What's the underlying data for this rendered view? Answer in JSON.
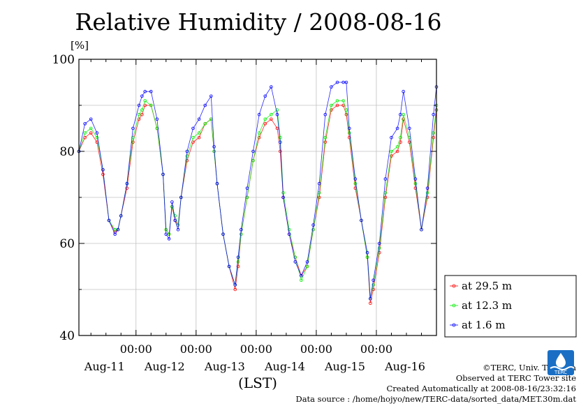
{
  "chart_data": {
    "type": "line",
    "title": "Relative Humidity / 2008-08-16",
    "ylabel": "[%]",
    "xlabel": "(LST)",
    "ylim": [
      40,
      100
    ],
    "yticks": [
      40,
      60,
      80,
      100
    ],
    "x_unit": "days since Aug-11 00:00 LST",
    "xlim": [
      -0.95,
      5.0
    ],
    "xticks": [
      {
        "x": 0,
        "label": "00:00",
        "date": "Aug-11"
      },
      {
        "x": 1,
        "label": "00:00",
        "date": "Aug-12"
      },
      {
        "x": 2,
        "label": "00:00",
        "date": "Aug-13"
      },
      {
        "x": 3,
        "label": "00:00",
        "date": "Aug-14"
      },
      {
        "x": 4,
        "label": "00:00",
        "date": "Aug-15"
      },
      {
        "x": 5,
        "label": "",
        "date": "Aug-16"
      }
    ],
    "grid": true,
    "legend_position": "right-bottom",
    "series": [
      {
        "name": "at 29.5 m",
        "color": "#ff0000",
        "x": [
          -0.95,
          -0.85,
          -0.75,
          -0.65,
          -0.55,
          -0.45,
          -0.35,
          -0.3,
          -0.25,
          -0.15,
          -0.05,
          0.05,
          0.1,
          0.15,
          0.25,
          0.35,
          0.45,
          0.5,
          0.55,
          0.6,
          0.65,
          0.7,
          0.75,
          0.85,
          0.95,
          1.05,
          1.15,
          1.25,
          1.3,
          1.35,
          1.45,
          1.55,
          1.65,
          1.7,
          1.75,
          1.85,
          1.95,
          2.05,
          2.15,
          2.25,
          2.35,
          2.4,
          2.45,
          2.55,
          2.65,
          2.75,
          2.85,
          2.95,
          3.05,
          3.15,
          3.25,
          3.35,
          3.45,
          3.5,
          3.55,
          3.65,
          3.75,
          3.85,
          3.9,
          3.95,
          4.05,
          4.15,
          4.25,
          4.35,
          4.4,
          4.45,
          4.55,
          4.65,
          4.75,
          4.85,
          4.95,
          5.0
        ],
        "y": [
          80,
          83,
          84,
          82,
          75,
          65,
          62.5,
          63,
          66,
          72,
          82,
          87,
          88,
          90,
          90,
          85,
          75,
          63,
          62,
          68,
          65,
          64,
          70,
          78,
          82,
          83,
          86,
          87,
          80,
          73,
          62,
          55,
          50,
          55,
          62,
          70,
          78,
          83,
          86,
          87,
          85,
          80,
          70,
          62,
          57,
          53,
          55,
          63,
          70,
          82,
          89,
          90,
          90,
          88,
          83,
          72,
          65,
          57,
          47,
          50,
          58,
          70,
          79,
          80,
          82,
          87,
          82,
          72,
          63,
          70,
          83,
          89
        ]
      },
      {
        "name": "at 12.3 m",
        "color": "#00ee00",
        "x": [
          -0.95,
          -0.85,
          -0.75,
          -0.65,
          -0.55,
          -0.45,
          -0.35,
          -0.3,
          -0.25,
          -0.15,
          -0.05,
          0.05,
          0.1,
          0.15,
          0.25,
          0.35,
          0.45,
          0.5,
          0.55,
          0.6,
          0.65,
          0.7,
          0.75,
          0.85,
          0.95,
          1.05,
          1.15,
          1.25,
          1.3,
          1.35,
          1.45,
          1.55,
          1.65,
          1.7,
          1.75,
          1.85,
          1.95,
          2.05,
          2.15,
          2.25,
          2.35,
          2.4,
          2.45,
          2.55,
          2.65,
          2.75,
          2.85,
          2.95,
          3.05,
          3.15,
          3.25,
          3.35,
          3.45,
          3.5,
          3.55,
          3.65,
          3.75,
          3.85,
          3.9,
          3.95,
          4.05,
          4.15,
          4.25,
          4.35,
          4.4,
          4.45,
          4.55,
          4.65,
          4.75,
          4.85,
          4.95,
          5.0
        ],
        "y": [
          80,
          84,
          85,
          83,
          76,
          65,
          63,
          63,
          66,
          73,
          83,
          88,
          89,
          91,
          90,
          85,
          75,
          63,
          62,
          68,
          66,
          64,
          70,
          79,
          83,
          84,
          86,
          87,
          80,
          73,
          62,
          55,
          51,
          56,
          62,
          70,
          78,
          84,
          87,
          88,
          89,
          83,
          71,
          63,
          57,
          52,
          55,
          63,
          71,
          83,
          90,
          91,
          91,
          89,
          84,
          73,
          65,
          57,
          48,
          51,
          59,
          71,
          80,
          81,
          83,
          88,
          83,
          73,
          63,
          71,
          84,
          90
        ]
      },
      {
        "name": "at 1.6 m",
        "color": "#0000ff",
        "x": [
          -0.95,
          -0.85,
          -0.75,
          -0.65,
          -0.55,
          -0.45,
          -0.35,
          -0.3,
          -0.25,
          -0.15,
          -0.05,
          0.05,
          0.1,
          0.15,
          0.25,
          0.35,
          0.45,
          0.5,
          0.55,
          0.6,
          0.65,
          0.7,
          0.75,
          0.85,
          0.95,
          1.05,
          1.15,
          1.25,
          1.3,
          1.35,
          1.45,
          1.55,
          1.65,
          1.7,
          1.75,
          1.85,
          1.95,
          2.05,
          2.15,
          2.25,
          2.35,
          2.4,
          2.45,
          2.55,
          2.65,
          2.75,
          2.85,
          2.95,
          3.05,
          3.15,
          3.25,
          3.35,
          3.45,
          3.5,
          3.55,
          3.65,
          3.75,
          3.85,
          3.9,
          3.95,
          4.05,
          4.15,
          4.25,
          4.35,
          4.4,
          4.45,
          4.55,
          4.65,
          4.75,
          4.85,
          4.95,
          5.0
        ],
        "y": [
          80,
          86,
          87,
          84,
          76,
          65,
          62,
          63,
          66,
          73,
          85,
          90,
          92,
          93,
          93,
          87,
          75,
          62,
          61,
          69,
          65,
          63,
          70,
          80,
          85,
          87,
          90,
          92,
          81,
          73,
          62,
          55,
          51,
          57,
          63,
          72,
          80,
          88,
          92,
          94,
          88,
          82,
          70,
          62,
          56,
          53,
          56,
          64,
          73,
          88,
          94,
          95,
          95,
          95,
          85,
          74,
          65,
          58,
          48,
          52,
          60,
          74,
          83,
          85,
          88,
          93,
          85,
          74,
          63,
          72,
          88,
          94
        ]
      }
    ]
  },
  "legend": [
    {
      "label": "at 29.5 m",
      "color": "#ff0000"
    },
    {
      "label": "at 12.3 m",
      "color": "#00ee00"
    },
    {
      "label": "at 1.6 m",
      "color": "#0000ff"
    }
  ],
  "credits": {
    "copyright": "©TERC, Univ. Tsukuba",
    "observed": "Observed at TERC Tower site",
    "created": "Created Automatically at 2008-08-16/23:32:16",
    "source": "Data source : /home/hojyo/new/TERC-data/sorted_data/MET.30m.dat"
  },
  "logo": {
    "text": "TERC",
    "color": "#1a6fc4"
  }
}
